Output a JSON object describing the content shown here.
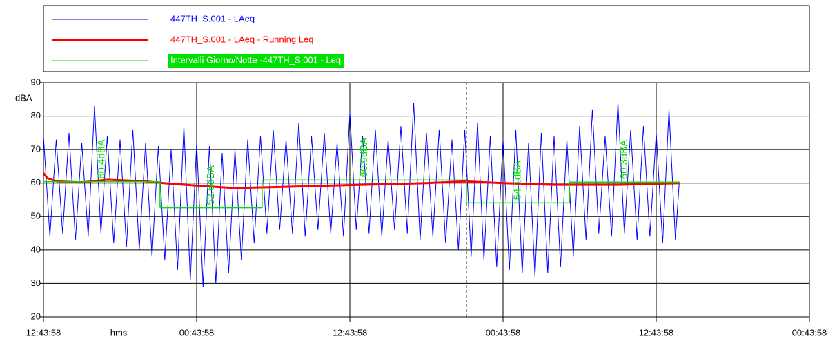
{
  "chart_data": {
    "type": "line",
    "xlabel": "hms",
    "ylabel": "dBA",
    "xlim": [
      0,
      60
    ],
    "xticks": [
      {
        "value": 0,
        "label": "12:43:58"
      },
      {
        "value": 12,
        "label": "00:43:58"
      },
      {
        "value": 24,
        "label": "12:43:58"
      },
      {
        "value": 36,
        "label": "00:43:58"
      },
      {
        "value": 48,
        "label": "12:43:58"
      },
      {
        "value": 60,
        "label": "00:43:58"
      }
    ],
    "ylim": [
      20,
      90
    ],
    "yticks": [
      20,
      30,
      40,
      50,
      60,
      70,
      80,
      90
    ],
    "grid": true,
    "cursor_x": 33.13,
    "series": [
      {
        "name": "447TH_S.001 - LAeq",
        "color": "#0000ff",
        "x": [
          0,
          0.5,
          1,
          1.5,
          2,
          2.5,
          3,
          3.5,
          4,
          4.5,
          5,
          5.5,
          6,
          6.5,
          7,
          7.5,
          8,
          8.5,
          9,
          9.5,
          10,
          10.5,
          11,
          11.5,
          12,
          12.5,
          13,
          13.5,
          14,
          14.5,
          15,
          15.5,
          16,
          16.5,
          17,
          17.5,
          18,
          18.5,
          19,
          19.5,
          20,
          20.5,
          21,
          21.5,
          22,
          22.5,
          23,
          23.5,
          24,
          24.5,
          25,
          25.5,
          26,
          26.5,
          27,
          27.5,
          28,
          28.5,
          29,
          29.5,
          30,
          30.5,
          31,
          31.5,
          32,
          32.5,
          33,
          33.5,
          34,
          34.5,
          35,
          35.5,
          36,
          36.5,
          37,
          37.5,
          38,
          38.5,
          39,
          39.5,
          40,
          40.5,
          41,
          41.5,
          42,
          42.5,
          43,
          43.5,
          44,
          44.5,
          45,
          45.5,
          46,
          46.5,
          47,
          47.5,
          48,
          48.5,
          49,
          49.5,
          49.8
        ],
        "values": [
          74,
          44,
          73,
          45,
          75,
          43,
          72,
          44,
          83,
          45,
          74,
          42,
          73,
          41,
          76,
          40,
          72,
          38,
          71,
          37,
          70,
          34,
          77,
          31,
          72,
          29,
          71,
          30,
          69,
          33,
          70,
          37,
          73,
          42,
          74,
          45,
          76,
          46,
          73,
          45,
          78,
          44,
          74,
          46,
          75,
          45,
          72,
          44,
          81,
          46,
          74,
          45,
          76,
          44,
          73,
          46,
          77,
          45,
          84,
          43,
          75,
          44,
          76,
          42,
          73,
          40,
          76,
          38,
          78,
          37,
          74,
          35,
          73,
          34,
          76,
          33,
          72,
          32,
          75,
          33,
          74,
          35,
          73,
          38,
          77,
          43,
          82,
          45,
          74,
          44,
          84,
          45,
          76,
          43,
          77,
          44,
          75,
          42,
          82,
          43,
          60
        ]
      },
      {
        "name": "447TH_S.001 - LAeq - Running Leq",
        "color": "#ff0000",
        "x": [
          0,
          0.3,
          1,
          3,
          5,
          8,
          10,
          13,
          15,
          20,
          25,
          30,
          33,
          36,
          40,
          45,
          49.8
        ],
        "values": [
          63,
          61.5,
          60.5,
          60.2,
          61,
          60.5,
          59.8,
          59,
          58.5,
          59,
          59.5,
          60,
          60.5,
          60,
          59.5,
          59.5,
          60
        ]
      },
      {
        "name": "Intervalli Giorno/Notte -447TH_S.001 - Leq",
        "color": "#00e000",
        "bins": [
          0,
          9.13,
          17.13,
          33.13,
          41.2,
          49.84
        ],
        "values": [
          60.4,
          52.6,
          60.9,
          54.1,
          60.3
        ],
        "value_labels": [
          "60.4dBA",
          "52.6dBA",
          "60.9dBA",
          "54.1dBA",
          "60.3dBA"
        ]
      }
    ]
  }
}
